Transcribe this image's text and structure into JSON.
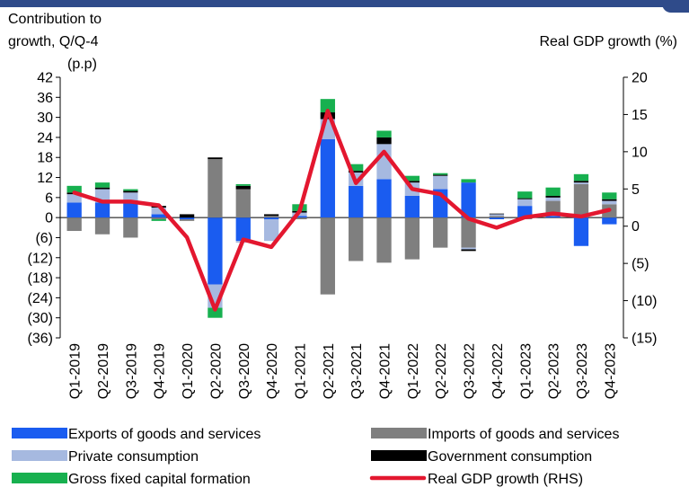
{
  "chart_data": {
    "type": "bar",
    "stacked": true,
    "title": "",
    "y_left_label_lines": [
      "Contribution to",
      "growth, Q/Q-4",
      "(p.p)"
    ],
    "y_right_label": "Real GDP growth (%)",
    "xlabel": "",
    "ylim_left": [
      -36,
      42
    ],
    "ylim_right": [
      -15,
      20
    ],
    "left_ticks": [
      42,
      36,
      30,
      24,
      18,
      12,
      6,
      0,
      -6,
      -12,
      -18,
      -24,
      -30,
      -36
    ],
    "left_tick_labels": [
      "42",
      "36",
      "30",
      "24",
      "18",
      "12",
      "6",
      "0",
      "(6)",
      "(12)",
      "(18)",
      "(24)",
      "(30)",
      "(36)"
    ],
    "right_ticks": [
      20,
      15,
      10,
      5,
      0,
      -5,
      -10,
      -15
    ],
    "right_tick_labels": [
      "20",
      "15",
      "10",
      "5",
      "0",
      "(5)",
      "(10)",
      "(15)"
    ],
    "categories": [
      "Q1-2019",
      "Q2-2019",
      "Q3-2019",
      "Q4-2019",
      "Q1-2020",
      "Q2-2020",
      "Q3-2020",
      "Q4-2020",
      "Q1-2021",
      "Q2-2021",
      "Q3-2021",
      "Q4-2021",
      "Q1-2022",
      "Q2-2022",
      "Q3-2022",
      "Q4-2022",
      "Q1-2023",
      "Q2-2023",
      "Q3-2023",
      "Q4-2023"
    ],
    "series": [
      {
        "name": "Exports of goods and services",
        "kind": "bar",
        "color": "#1a5cf0",
        "values": [
          4.5,
          4.5,
          5.0,
          1.0,
          -0.5,
          -20.0,
          -7.0,
          -0.5,
          0.5,
          23.5,
          9.5,
          11.5,
          6.5,
          8.5,
          10.5,
          -0.5,
          3.5,
          0.5,
          -8.5,
          -2.0
        ]
      },
      {
        "name": "Imports of goods and services",
        "kind": "bar",
        "color": "#7f7f7f",
        "values": [
          -4.0,
          -5.0,
          -6.0,
          -0.5,
          -0.5,
          17.5,
          8.5,
          0.5,
          -0.5,
          -23.0,
          -13.0,
          -13.5,
          -12.5,
          -9.0,
          -9.0,
          0.5,
          -0.5,
          4.5,
          10.0,
          4.0
        ]
      },
      {
        "name": "Private consumption",
        "kind": "bar",
        "color": "#a6b9e0",
        "values": [
          2.5,
          4.0,
          2.5,
          2.0,
          0.0,
          -7.0,
          -0.5,
          -6.5,
          1.0,
          6.0,
          4.0,
          10.5,
          4.0,
          4.0,
          -0.5,
          0.5,
          2.0,
          1.0,
          0.5,
          1.0
        ]
      },
      {
        "name": "Government consumption",
        "kind": "bar",
        "color": "#000000",
        "values": [
          0.5,
          0.5,
          0.5,
          0.5,
          1.0,
          0.5,
          1.0,
          0.5,
          0.5,
          2.0,
          0.5,
          2.0,
          0.5,
          0.3,
          -0.5,
          0.2,
          0.3,
          0.5,
          0.5,
          0.5
        ]
      },
      {
        "name": "Gross fixed capital formation",
        "kind": "bar",
        "color": "#17b04f",
        "values": [
          2.0,
          1.5,
          0.5,
          -0.5,
          0.0,
          -3.0,
          0.5,
          0.0,
          2.0,
          4.0,
          2.0,
          2.0,
          1.5,
          0.5,
          1.0,
          0.0,
          2.0,
          2.5,
          2.0,
          2.0
        ]
      },
      {
        "name": "Real GDP growth (RHS)",
        "kind": "line",
        "axis": "right",
        "color": "#e3172f",
        "values": [
          4.5,
          3.3,
          3.3,
          2.8,
          -1.5,
          -11.2,
          -1.8,
          -2.8,
          2.0,
          15.5,
          5.8,
          10.0,
          5.0,
          4.3,
          1.0,
          -0.2,
          1.2,
          1.7,
          1.3,
          2.2
        ]
      }
    ],
    "legend_position": "bottom",
    "legend": [
      [
        "Exports of goods and services",
        "Imports of goods and services"
      ],
      [
        "Private consumption",
        "Government consumption"
      ],
      [
        "Gross fixed capital formation",
        "Real GDP growth (RHS)"
      ]
    ],
    "grid": false
  }
}
